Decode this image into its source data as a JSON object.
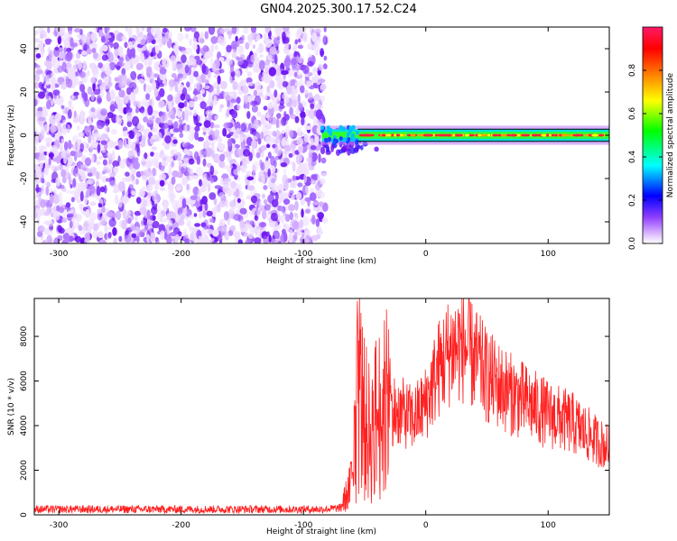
{
  "title": "GN04.2025.300.17.52.C24",
  "chart_data": [
    {
      "type": "heatmap",
      "xlabel": "Height of straight line (km)",
      "ylabel": "Frequency (Hz)",
      "xlim": [
        -320,
        150
      ],
      "ylim": [
        -50,
        50
      ],
      "xticks": [
        -300,
        -200,
        -100,
        0,
        100
      ],
      "yticks": [
        -40,
        -20,
        0,
        20,
        40
      ],
      "noise_region_x": [
        -320,
        -82
      ],
      "signal_band": {
        "x_start": -85,
        "x_end": 150,
        "frequency_center": 0,
        "frequency_halfwidth": 2
      },
      "colorbar": {
        "label": "Normalized spectral amplitude",
        "range": [
          0.0,
          1.0
        ],
        "ticks": [
          0.0,
          0.2,
          0.4,
          0.6,
          0.8
        ],
        "tick_labels": [
          "0.0",
          "0.2",
          "0.4",
          "0.6",
          "0.8"
        ],
        "colormap": [
          "#ffffff",
          "#d9b3ff",
          "#8000ff",
          "#0000ff",
          "#00ffff",
          "#00ff00",
          "#ffff00",
          "#ff8000",
          "#ff0000",
          "#ff1a66"
        ]
      },
      "grid": false
    },
    {
      "type": "line",
      "xlabel": "Height of straight line (km)",
      "ylabel": "SNR (10 * v/v)",
      "xlim": [
        -320,
        150
      ],
      "ylim": [
        0,
        9700
      ],
      "xticks": [
        -300,
        -200,
        -100,
        0,
        100
      ],
      "yticks": [
        0,
        2000,
        4000,
        6000,
        8000
      ],
      "color": "#ff2020",
      "grid": false,
      "envelope": {
        "x": [
          -320,
          -85,
          -70,
          -62,
          -58,
          -55,
          -50,
          -45,
          -40,
          -30,
          -20,
          -10,
          0,
          10,
          20,
          30,
          40,
          50,
          60,
          70,
          80,
          90,
          100,
          110,
          120,
          130,
          140,
          150
        ],
        "y": [
          250,
          250,
          300,
          1200,
          3000,
          6000,
          4200,
          3500,
          4500,
          4800,
          4600,
          4300,
          5000,
          6500,
          7400,
          7600,
          7000,
          6200,
          5800,
          5400,
          5100,
          4800,
          4500,
          4300,
          4100,
          3700,
          3300,
          3000
        ]
      }
    }
  ]
}
